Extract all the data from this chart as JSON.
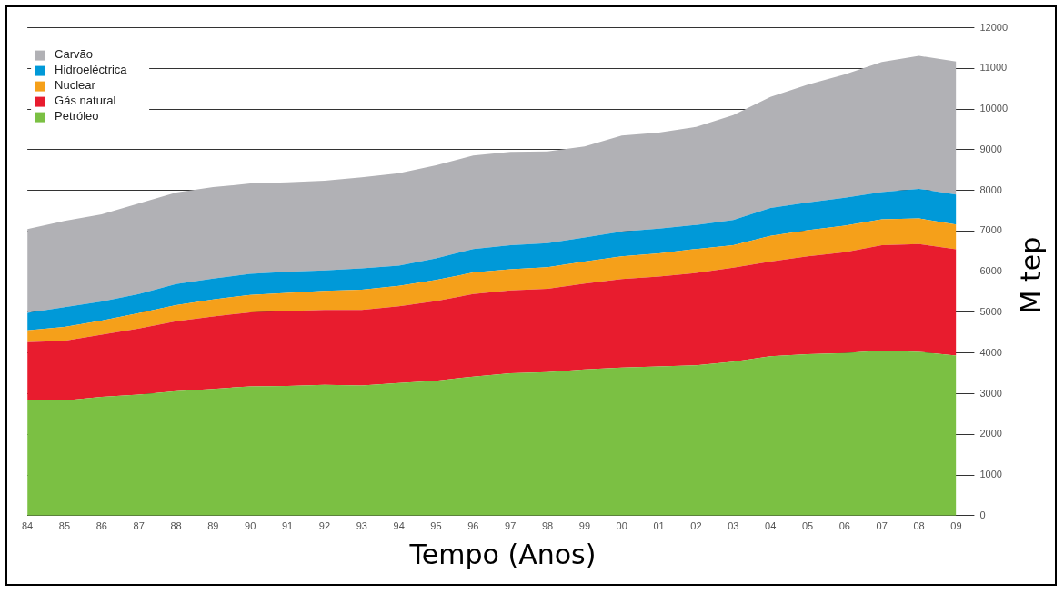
{
  "chart_data": {
    "type": "area",
    "stacked": true,
    "xlabel": "Tempo (Anos)",
    "ylabel": "M tep",
    "categories": [
      "84",
      "85",
      "86",
      "87",
      "88",
      "89",
      "90",
      "91",
      "92",
      "93",
      "94",
      "95",
      "96",
      "97",
      "98",
      "99",
      "00",
      "01",
      "02",
      "03",
      "04",
      "05",
      "06",
      "07",
      "08",
      "09"
    ],
    "series": [
      {
        "name": "Petróleo",
        "color": "#7bc043",
        "values": [
          2850,
          2830,
          2920,
          2980,
          3060,
          3120,
          3180,
          3190,
          3220,
          3200,
          3260,
          3320,
          3420,
          3500,
          3530,
          3600,
          3640,
          3670,
          3700,
          3790,
          3920,
          3970,
          4000,
          4060,
          4030,
          3940
        ]
      },
      {
        "name": "Gás natural",
        "color": "#e81c2e",
        "values": [
          1420,
          1470,
          1530,
          1620,
          1720,
          1780,
          1820,
          1840,
          1840,
          1860,
          1890,
          1960,
          2030,
          2040,
          2050,
          2110,
          2180,
          2210,
          2270,
          2310,
          2330,
          2410,
          2480,
          2590,
          2650,
          2610
        ]
      },
      {
        "name": "Nuclear",
        "color": "#f5a01a",
        "values": [
          290,
          340,
          350,
          380,
          400,
          420,
          430,
          450,
          470,
          500,
          500,
          520,
          530,
          520,
          530,
          540,
          560,
          570,
          590,
          550,
          630,
          640,
          650,
          640,
          630,
          610
        ]
      },
      {
        "name": "Hidroeléctrica",
        "color": "#0099d8",
        "values": [
          430,
          490,
          470,
          470,
          520,
          510,
          520,
          520,
          500,
          520,
          500,
          530,
          580,
          590,
          590,
          590,
          610,
          610,
          590,
          620,
          690,
          680,
          690,
          670,
          730,
          740
        ]
      },
      {
        "name": "Carvão",
        "color": "#b1b1b5",
        "values": [
          2060,
          2120,
          2140,
          2230,
          2250,
          2250,
          2220,
          2200,
          2210,
          2240,
          2270,
          2290,
          2300,
          2300,
          2260,
          2240,
          2360,
          2360,
          2410,
          2580,
          2730,
          2900,
          3030,
          3200,
          3270,
          3270
        ]
      }
    ],
    "ylim": [
      0,
      12000
    ],
    "yticks": [
      0,
      1000,
      2000,
      3000,
      4000,
      5000,
      6000,
      7000,
      8000,
      9000,
      10000,
      11000,
      12000
    ],
    "grid": "y",
    "legend": "top left",
    "marker": "none"
  }
}
